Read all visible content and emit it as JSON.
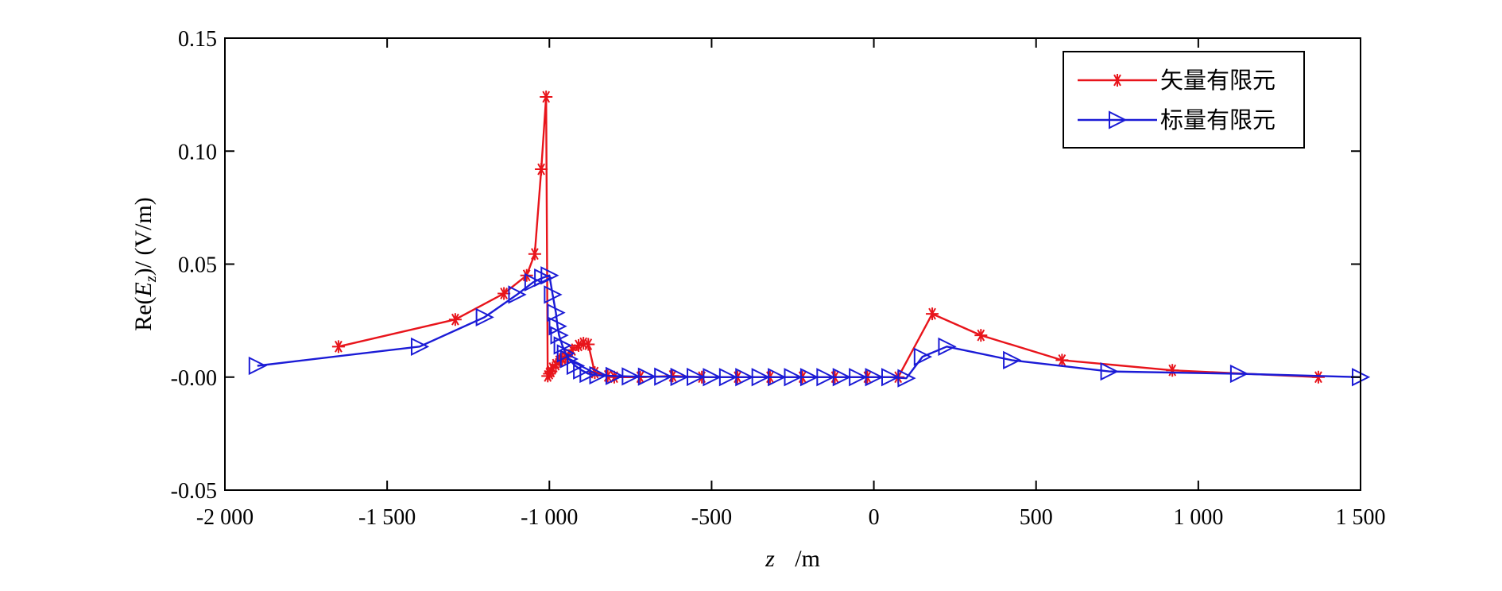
{
  "chart_data": {
    "type": "line",
    "xlabel": "z",
    "xlabel_unit": "/m",
    "ylabel_prefix": "Re(",
    "ylabel_var": "E",
    "ylabel_sub": "z",
    "ylabel_suffix": ")/ (V/m)",
    "xlim": [
      -2000,
      1500
    ],
    "ylim": [
      -0.05,
      0.15
    ],
    "x_ticks": [
      {
        "value": -2000,
        "label": "-2 000"
      },
      {
        "value": -1500,
        "label": "-1 500"
      },
      {
        "value": -1000,
        "label": "-1 000"
      },
      {
        "value": -500,
        "label": "-500"
      },
      {
        "value": 0,
        "label": "0"
      },
      {
        "value": 500,
        "label": "500"
      },
      {
        "value": 1000,
        "label": "1 000"
      },
      {
        "value": 1500,
        "label": "1 500"
      }
    ],
    "y_ticks": [
      {
        "value": 0.15,
        "label": "0.15"
      },
      {
        "value": 0.1,
        "label": "0.10"
      },
      {
        "value": 0.05,
        "label": "0.05"
      },
      {
        "value": 0.0,
        "label": "-0.00"
      },
      {
        "value": -0.05,
        "label": "-0.05"
      }
    ],
    "grid": false,
    "legend_position": "top-right",
    "series": [
      {
        "name": "矢量有限元",
        "color": "#e8141b",
        "marker": "asterisk",
        "x": [
          -1650,
          -1290,
          -1140,
          -1070,
          -1045,
          -1025,
          -1010,
          -1005,
          -1000,
          -995,
          -990,
          -980,
          -970,
          -960,
          -950,
          -930,
          -910,
          -895,
          -880,
          -860,
          -820,
          -800,
          -720,
          -620,
          -530,
          -420,
          -320,
          -220,
          -120,
          -20,
          75,
          180,
          330,
          580,
          920,
          1370
        ],
        "y": [
          0.0135,
          0.0255,
          0.037,
          0.045,
          0.0545,
          0.092,
          0.124,
          0.0005,
          0.0015,
          0.0025,
          0.004,
          0.0055,
          0.007,
          0.008,
          0.009,
          0.012,
          0.014,
          0.015,
          0.0145,
          0.002,
          0.0005,
          0.0,
          0.0,
          0.0005,
          0.0,
          0.0,
          0.0,
          0.0,
          0.0,
          0.0,
          0.0,
          0.028,
          0.0185,
          0.0075,
          0.003,
          0.0
        ]
      },
      {
        "name": "标量有限元",
        "color": "#1b1bd6",
        "marker": "triangle-right",
        "x": [
          -1900,
          -1400,
          -1200,
          -1100,
          -1050,
          -1020,
          -1000,
          -990,
          -980,
          -975,
          -970,
          -960,
          -950,
          -940,
          -920,
          -900,
          -880,
          -850,
          -800,
          -750,
          -700,
          -650,
          -600,
          -550,
          -500,
          -450,
          -400,
          -350,
          -300,
          -250,
          -200,
          -150,
          -100,
          -50,
          0,
          50,
          100,
          150,
          225,
          425,
          725,
          1125,
          1500
        ],
        "y": [
          0.005,
          0.0135,
          0.0265,
          0.0365,
          0.042,
          0.044,
          0.045,
          0.0365,
          0.0285,
          0.0225,
          0.0185,
          0.014,
          0.0105,
          0.008,
          0.005,
          0.003,
          0.0015,
          0.0008,
          0.0005,
          0.0003,
          0.0002,
          0.0002,
          0.0001,
          0.0001,
          0.0,
          0.0,
          0.0,
          0.0,
          0.0,
          0.0,
          0.0,
          0.0,
          0.0,
          0.0,
          0.0,
          0.0,
          -0.0005,
          0.009,
          0.0135,
          0.0075,
          0.0025,
          0.0015,
          0.0
        ]
      }
    ]
  },
  "markers_on": {
    "series_0": [
      0,
      1,
      2,
      3,
      4,
      5,
      6,
      7,
      8,
      9,
      10,
      11,
      12,
      13,
      14,
      15,
      16,
      17,
      18,
      19,
      20,
      21,
      22,
      23,
      24,
      25,
      26,
      27,
      28,
      29,
      30,
      31,
      32,
      33,
      34,
      35
    ],
    "series_1": [
      0,
      1,
      2,
      3,
      4,
      5,
      6,
      7,
      8,
      9,
      10,
      11,
      12,
      13,
      14,
      15,
      16,
      17,
      18,
      19,
      20,
      21,
      22,
      23,
      24,
      25,
      26,
      27,
      28,
      29,
      30,
      31,
      32,
      33,
      34,
      35,
      36,
      37,
      38,
      39,
      40,
      41
    ]
  }
}
